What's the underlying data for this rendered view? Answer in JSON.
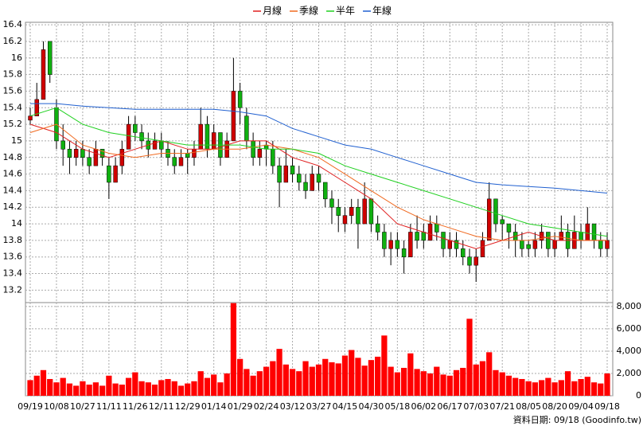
{
  "chart_data": {
    "type": "candlestick",
    "categories": [
      "09/19",
      "10/08",
      "10/27",
      "11/11",
      "11/26",
      "12/11",
      "12/29",
      "01/14",
      "01/29",
      "02/24",
      "03/12",
      "03/27",
      "04/15",
      "04/30",
      "05/18",
      "06/02",
      "06/17",
      "07/03",
      "07/21",
      "08/05",
      "08/20",
      "09/04",
      "09/18"
    ],
    "candles": [
      [
        15.25,
        15.4,
        15.2,
        15.3
      ],
      [
        15.3,
        15.7,
        15.3,
        15.5
      ],
      [
        15.5,
        16.2,
        15.5,
        16.1
      ],
      [
        16.2,
        16.2,
        15.7,
        15.8
      ],
      [
        15.4,
        15.5,
        14.9,
        15.0
      ],
      [
        15.0,
        15.2,
        14.7,
        14.9
      ],
      [
        14.9,
        15.0,
        14.6,
        14.8
      ],
      [
        14.8,
        15.0,
        14.7,
        14.9
      ],
      [
        14.9,
        15.0,
        14.7,
        14.8
      ],
      [
        14.8,
        14.9,
        14.6,
        14.7
      ],
      [
        14.7,
        15.0,
        14.7,
        14.9
      ],
      [
        14.9,
        14.9,
        14.7,
        14.8
      ],
      [
        14.7,
        14.8,
        14.3,
        14.5
      ],
      [
        14.5,
        14.8,
        14.5,
        14.7
      ],
      [
        14.7,
        15.0,
        14.6,
        14.9
      ],
      [
        14.9,
        15.3,
        14.9,
        15.2
      ],
      [
        15.2,
        15.3,
        15.0,
        15.1
      ],
      [
        15.1,
        15.2,
        14.9,
        15.0
      ],
      [
        15.0,
        15.1,
        14.8,
        14.9
      ],
      [
        14.9,
        15.1,
        14.9,
        15.0
      ],
      [
        15.0,
        15.1,
        14.8,
        14.9
      ],
      [
        14.9,
        15.0,
        14.7,
        14.8
      ],
      [
        14.8,
        14.9,
        14.6,
        14.7
      ],
      [
        14.7,
        14.9,
        14.7,
        14.8
      ],
      [
        14.85,
        14.9,
        14.6,
        14.8
      ],
      [
        14.8,
        15.0,
        14.7,
        14.9
      ],
      [
        14.9,
        15.4,
        14.9,
        15.2
      ],
      [
        15.2,
        15.3,
        14.8,
        14.9
      ],
      [
        14.9,
        15.2,
        14.9,
        15.1
      ],
      [
        15.1,
        15.1,
        14.7,
        14.8
      ],
      [
        14.8,
        15.1,
        14.8,
        15.0
      ],
      [
        15.0,
        16.0,
        15.0,
        15.6
      ],
      [
        15.6,
        15.7,
        15.2,
        15.4
      ],
      [
        15.3,
        15.4,
        14.9,
        15.0
      ],
      [
        15.0,
        15.1,
        14.7,
        14.8
      ],
      [
        14.8,
        15.0,
        14.7,
        14.9
      ],
      [
        14.95,
        15.0,
        14.7,
        14.9
      ],
      [
        14.9,
        15.0,
        14.6,
        14.7
      ],
      [
        14.7,
        14.8,
        14.2,
        14.5
      ],
      [
        14.5,
        14.9,
        14.5,
        14.7
      ],
      [
        14.7,
        14.8,
        14.5,
        14.6
      ],
      [
        14.6,
        14.7,
        14.4,
        14.5
      ],
      [
        14.5,
        14.6,
        14.3,
        14.4
      ],
      [
        14.4,
        14.7,
        14.4,
        14.6
      ],
      [
        14.6,
        14.7,
        14.4,
        14.5
      ],
      [
        14.5,
        14.5,
        14.2,
        14.3
      ],
      [
        14.3,
        14.4,
        14.0,
        14.2
      ],
      [
        14.2,
        14.3,
        13.9,
        14.1
      ],
      [
        14.0,
        14.2,
        13.9,
        14.1
      ],
      [
        14.1,
        14.3,
        14.0,
        14.2
      ],
      [
        14.2,
        14.3,
        13.7,
        14.0
      ],
      [
        14.0,
        14.5,
        14.0,
        14.3
      ],
      [
        14.3,
        14.3,
        13.9,
        14.0
      ],
      [
        14.0,
        14.1,
        13.8,
        13.9
      ],
      [
        13.9,
        14.0,
        13.6,
        13.7
      ],
      [
        13.7,
        13.9,
        13.5,
        13.8
      ],
      [
        13.8,
        13.9,
        13.6,
        13.7
      ],
      [
        13.7,
        13.8,
        13.4,
        13.6
      ],
      [
        13.6,
        14.0,
        13.6,
        13.9
      ],
      [
        13.9,
        14.1,
        13.7,
        13.8
      ],
      [
        13.9,
        14.0,
        13.7,
        13.8
      ],
      [
        13.8,
        14.1,
        13.8,
        14.0
      ],
      [
        14.0,
        14.1,
        13.8,
        13.9
      ],
      [
        13.9,
        13.9,
        13.6,
        13.7
      ],
      [
        13.7,
        13.9,
        13.6,
        13.8
      ],
      [
        13.8,
        13.9,
        13.6,
        13.7
      ],
      [
        13.7,
        13.8,
        13.5,
        13.6
      ],
      [
        13.6,
        13.7,
        13.4,
        13.5
      ],
      [
        13.5,
        13.7,
        13.3,
        13.6
      ],
      [
        13.6,
        13.9,
        13.6,
        13.8
      ],
      [
        13.8,
        14.5,
        13.8,
        14.3
      ],
      [
        14.3,
        14.3,
        13.9,
        14.0
      ],
      [
        14.05,
        14.1,
        13.8,
        14.0
      ],
      [
        14.0,
        14.0,
        13.7,
        13.9
      ],
      [
        13.9,
        14.0,
        13.6,
        13.8
      ],
      [
        13.8,
        13.9,
        13.6,
        13.7
      ],
      [
        13.75,
        13.8,
        13.6,
        13.7
      ],
      [
        13.7,
        13.9,
        13.6,
        13.8
      ],
      [
        13.8,
        14.0,
        13.7,
        13.9
      ],
      [
        13.9,
        13.9,
        13.6,
        13.7
      ],
      [
        13.7,
        13.9,
        13.6,
        13.8
      ],
      [
        13.8,
        14.1,
        13.8,
        13.9
      ],
      [
        13.9,
        14.0,
        13.6,
        13.7
      ],
      [
        13.7,
        14.1,
        13.7,
        13.9
      ],
      [
        13.9,
        14.0,
        13.7,
        13.8
      ],
      [
        13.8,
        14.2,
        13.8,
        14.0
      ],
      [
        14.0,
        14.0,
        13.7,
        13.8
      ],
      [
        13.8,
        13.9,
        13.6,
        13.7
      ],
      [
        13.7,
        13.9,
        13.6,
        13.8
      ]
    ],
    "volume": [
      1400,
      1800,
      2300,
      1500,
      1200,
      1600,
      1100,
      900,
      1300,
      1000,
      1200,
      900,
      1800,
      1100,
      1000,
      1600,
      2100,
      1300,
      1200,
      1000,
      1400,
      1500,
      1300,
      900,
      1100,
      1300,
      2200,
      1600,
      1900,
      1200,
      2000,
      8300,
      3300,
      2400,
      1800,
      2200,
      2600,
      3100,
      4200,
      2800,
      2400,
      2200,
      3100,
      2600,
      2800,
      3300,
      3000,
      2900,
      3600,
      4100,
      3400,
      2700,
      3200,
      3500,
      5400,
      2600,
      2100,
      2500,
      3800,
      2400,
      2200,
      2000,
      2600,
      1900,
      1800,
      2300,
      2500,
      6900,
      2800,
      3100,
      3900,
      2300,
      2100,
      1800,
      1600,
      1500,
      1300,
      1200,
      1400,
      1600,
      1200,
      1400,
      2200,
      1300,
      1500,
      1700,
      1200,
      1100,
      2000
    ],
    "series": [
      {
        "name": "月線",
        "color": "#e02020",
        "values": [
          15.2,
          15.1,
          14.9,
          14.8,
          14.9,
          15.0,
          14.9,
          14.9,
          15.0,
          15.0,
          14.8,
          14.7,
          14.5,
          14.3,
          14.0,
          13.9,
          13.8,
          13.7,
          13.8,
          13.9,
          13.8,
          13.8,
          13.8
        ]
      },
      {
        "name": "季線",
        "color": "#f06a20",
        "values": [
          15.1,
          15.2,
          14.95,
          14.85,
          14.8,
          14.85,
          14.85,
          14.9,
          14.9,
          14.95,
          14.9,
          14.8,
          14.6,
          14.4,
          14.2,
          14.05,
          13.95,
          13.85,
          13.8,
          13.8,
          13.85,
          13.8,
          13.8
        ]
      },
      {
        "name": "半年",
        "color": "#20d020",
        "values": [
          15.3,
          15.4,
          15.2,
          15.1,
          15.05,
          15.0,
          14.95,
          14.95,
          14.95,
          14.9,
          14.9,
          14.85,
          14.7,
          14.6,
          14.5,
          14.4,
          14.3,
          14.2,
          14.1,
          14.0,
          13.95,
          13.9,
          13.85
        ]
      },
      {
        "name": "年線",
        "color": "#2060d0",
        "values": [
          15.45,
          15.45,
          15.42,
          15.4,
          15.38,
          15.38,
          15.38,
          15.38,
          15.35,
          15.3,
          15.15,
          15.05,
          14.95,
          14.9,
          14.8,
          14.7,
          14.6,
          14.5,
          14.47,
          14.45,
          14.43,
          14.4,
          14.37
        ]
      }
    ],
    "up_color": "#d00000",
    "down_color": "#10b010",
    "volume_color": "#ff0000",
    "ylim": [
      13.05,
      16.43
    ],
    "yticks": [
      13.2,
      13.4,
      13.6,
      13.8,
      14,
      14.2,
      14.4,
      14.6,
      14.8,
      15,
      15.2,
      15.4,
      15.6,
      15.8,
      16,
      16.2,
      16.4
    ],
    "y2lim": [
      0,
      8350
    ],
    "y2ticks": [
      0,
      {
        "value": 2000,
        "label": "2,000"
      },
      {
        "value": 4000,
        "label": "4,000"
      },
      {
        "value": 6000,
        "label": "6,000"
      },
      {
        "value": 8000,
        "label": "8,000"
      }
    ],
    "grid": true,
    "footer": "資料日期: 09/18 (Goodinfo.tw)"
  }
}
